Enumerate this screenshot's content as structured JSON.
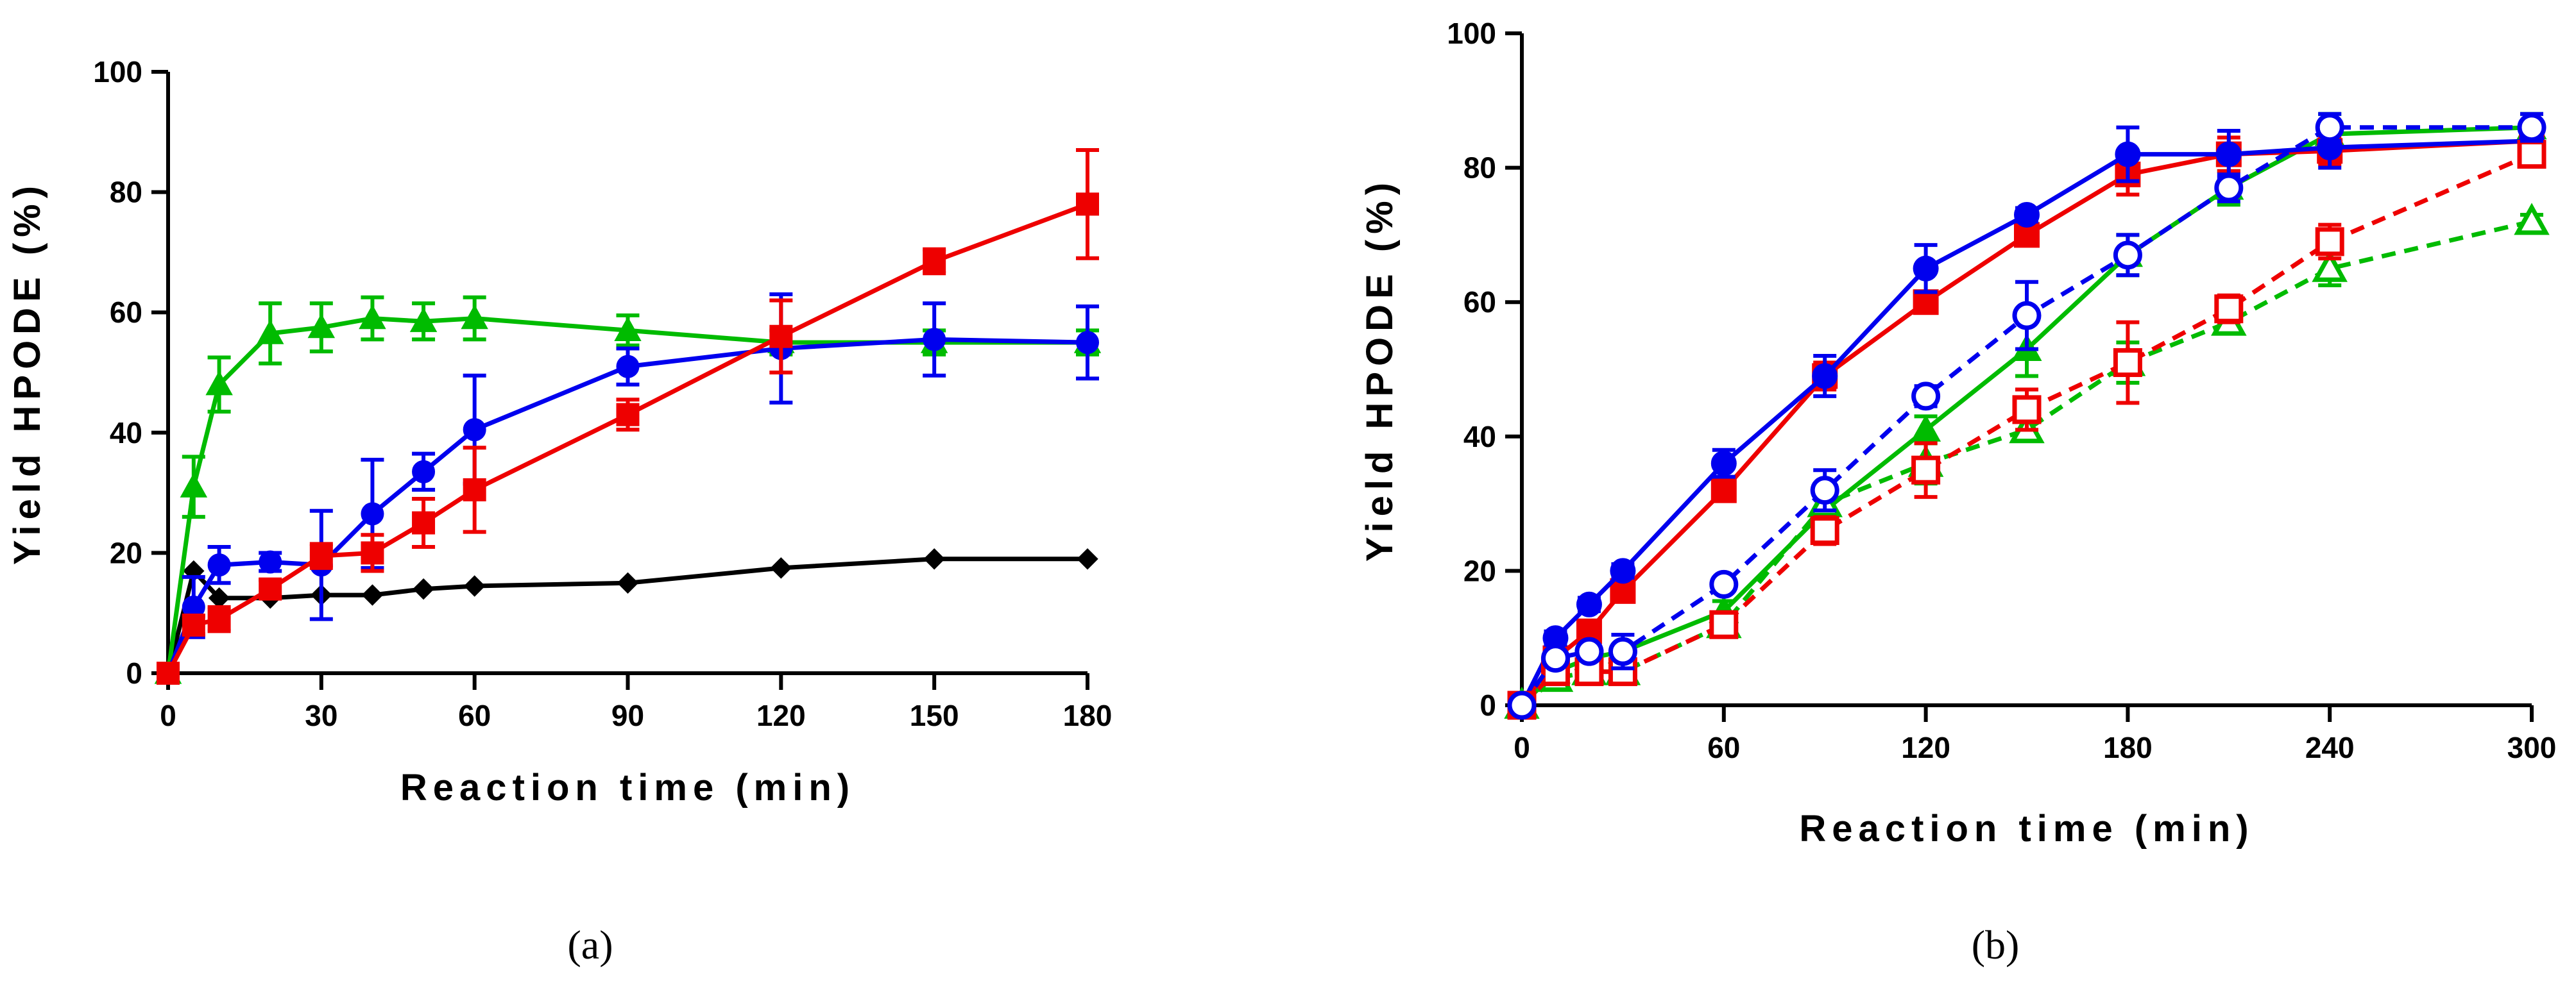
{
  "chart_data": [
    {
      "type": "line",
      "panel_label": "(a)",
      "xlabel": "Reaction time (min)",
      "ylabel": "Yield HPODE (%)",
      "xlim": [
        0,
        180
      ],
      "ylim": [
        0,
        100
      ],
      "xticks": [
        0,
        30,
        60,
        90,
        120,
        150,
        180
      ],
      "yticks": [
        0,
        20,
        40,
        60,
        80,
        100
      ],
      "grid": false,
      "series": [
        {
          "color": "#000000",
          "marker": "diamond",
          "filled": true,
          "dashed": false,
          "x": [
            0,
            5,
            10,
            20,
            30,
            40,
            50,
            60,
            90,
            120,
            150,
            180
          ],
          "y": [
            0,
            17,
            12.5,
            12.5,
            13,
            13,
            14,
            14.5,
            15,
            17.5,
            19,
            19
          ],
          "err": [
            0,
            0,
            0,
            0,
            0,
            0,
            0,
            0,
            0,
            0,
            0,
            0
          ]
        },
        {
          "color": "#00bb00",
          "marker": "triangle",
          "filled": true,
          "dashed": false,
          "x": [
            0,
            5,
            10,
            20,
            30,
            40,
            50,
            60,
            90,
            120,
            150,
            180
          ],
          "y": [
            0,
            31,
            48,
            56.5,
            57.5,
            59,
            58.5,
            59,
            57,
            55,
            55,
            55
          ],
          "err": [
            0,
            5,
            4.5,
            5,
            4,
            3.5,
            3,
            3.5,
            2.5,
            2,
            2,
            2
          ]
        },
        {
          "color": "#0000ee",
          "marker": "circle",
          "filled": true,
          "dashed": false,
          "x": [
            0,
            5,
            10,
            20,
            30,
            40,
            50,
            60,
            90,
            120,
            150,
            180
          ],
          "y": [
            0,
            11,
            18,
            18.5,
            18,
            26.5,
            33.5,
            40.5,
            51,
            54,
            55.5,
            55
          ],
          "err": [
            0,
            5,
            3,
            1.5,
            9,
            9,
            3,
            9,
            3,
            9,
            6,
            6
          ]
        },
        {
          "color": "#ee0000",
          "marker": "square",
          "filled": true,
          "dashed": false,
          "x": [
            0,
            5,
            10,
            20,
            30,
            40,
            50,
            60,
            90,
            120,
            150,
            180
          ],
          "y": [
            0,
            8,
            9,
            14,
            19.5,
            20,
            25,
            30.5,
            43,
            56,
            68.5,
            78
          ],
          "err": [
            0,
            1.5,
            2,
            1.5,
            2,
            3,
            4,
            7,
            2.5,
            6,
            2,
            9
          ]
        }
      ]
    },
    {
      "type": "line",
      "panel_label": "(b)",
      "xlabel": "Reaction time (min)",
      "ylabel": "Yield HPODE (%)",
      "xlim": [
        0,
        300
      ],
      "ylim": [
        0,
        100
      ],
      "xticks": [
        0,
        60,
        120,
        180,
        240,
        300
      ],
      "yticks": [
        0,
        20,
        40,
        60,
        80,
        100
      ],
      "grid": false,
      "series": [
        {
          "color": "#00bb00",
          "marker": "triangle",
          "filled": true,
          "dashed": false,
          "x": [
            0,
            10,
            20,
            30,
            60,
            90,
            120,
            150,
            180,
            210,
            240,
            300
          ],
          "y": [
            0,
            5,
            7,
            8,
            14,
            29,
            41,
            53,
            67,
            77,
            85,
            86
          ],
          "err": [
            0,
            1,
            1,
            1,
            1.5,
            2,
            2,
            4,
            3,
            2.5,
            3,
            2
          ]
        },
        {
          "color": "#ee0000",
          "marker": "square",
          "filled": true,
          "dashed": false,
          "x": [
            0,
            10,
            20,
            30,
            60,
            90,
            120,
            150,
            180,
            210,
            240,
            300
          ],
          "y": [
            0,
            7,
            11,
            17,
            32,
            49,
            60,
            70,
            79,
            82,
            82.5,
            84
          ],
          "err": [
            0,
            1,
            1,
            1,
            1,
            2,
            1.5,
            1.5,
            3,
            2.5,
            2,
            1.5
          ]
        },
        {
          "color": "#0000ee",
          "marker": "circle",
          "filled": true,
          "dashed": false,
          "x": [
            0,
            10,
            20,
            30,
            60,
            90,
            120,
            150,
            180,
            210,
            240,
            300
          ],
          "y": [
            0,
            10,
            15,
            20,
            36,
            49,
            65,
            73,
            82,
            82,
            83,
            84
          ],
          "err": [
            0,
            1,
            1,
            1,
            2,
            3,
            3.5,
            1,
            4,
            3.5,
            3,
            2
          ]
        },
        {
          "color": "#00bb00",
          "marker": "triangle",
          "filled": false,
          "dashed": true,
          "x": [
            0,
            10,
            20,
            30,
            60,
            90,
            120,
            150,
            180,
            210,
            240,
            300
          ],
          "y": [
            0,
            4,
            5,
            5,
            12,
            30,
            36,
            41,
            51,
            57,
            65,
            72
          ],
          "err": [
            0,
            1,
            1,
            1,
            1.5,
            2,
            3,
            1.5,
            3,
            1.5,
            2.5,
            1
          ]
        },
        {
          "color": "#ee0000",
          "marker": "square",
          "filled": false,
          "dashed": true,
          "x": [
            0,
            10,
            20,
            30,
            60,
            90,
            120,
            150,
            180,
            210,
            240,
            300
          ],
          "y": [
            0,
            5,
            5,
            5,
            12,
            26,
            35,
            44,
            51,
            59,
            69,
            82
          ],
          "err": [
            0,
            1,
            1,
            1,
            1.5,
            2,
            4,
            3,
            6,
            2,
            2.5,
            1.5
          ]
        },
        {
          "color": "#0000ee",
          "marker": "circle",
          "filled": false,
          "dashed": true,
          "x": [
            0,
            10,
            20,
            30,
            60,
            90,
            120,
            150,
            180,
            210,
            240,
            300
          ],
          "y": [
            0,
            7,
            8,
            8,
            18,
            32,
            46,
            58,
            67,
            77,
            86,
            86
          ],
          "err": [
            0,
            1,
            1,
            2.5,
            1,
            3,
            1.5,
            5,
            3,
            2,
            2,
            2
          ]
        }
      ]
    }
  ]
}
